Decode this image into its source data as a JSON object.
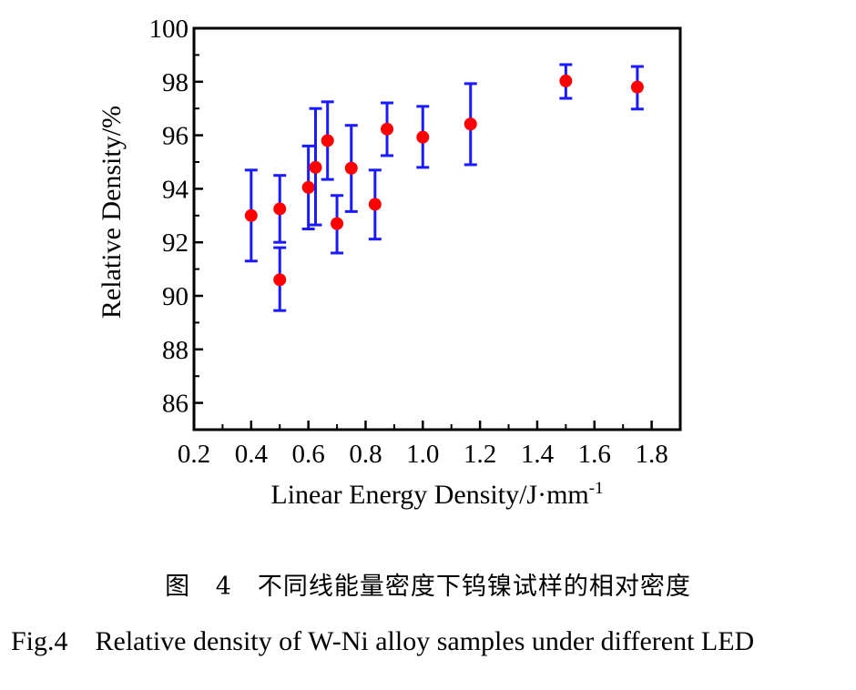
{
  "chart_data": {
    "type": "scatter",
    "title": "",
    "xlabel": "Linear Energy Density/J·mm",
    "xlabel_superscript": "-1",
    "ylabel": "Relative Density/%",
    "xlim": [
      0.2,
      1.9
    ],
    "ylim": [
      85,
      100
    ],
    "x_ticks": [
      0.2,
      0.4,
      0.6,
      0.8,
      1.0,
      1.2,
      1.4,
      1.6,
      1.8
    ],
    "x_tick_labels": [
      "0.2",
      "0.4",
      "0.6",
      "0.8",
      "1.0",
      "1.2",
      "1.4",
      "1.6",
      "1.8"
    ],
    "y_ticks": [
      86,
      88,
      90,
      92,
      94,
      96,
      98,
      100
    ],
    "y_tick_labels": [
      "86",
      "88",
      "90",
      "92",
      "94",
      "96",
      "98",
      "100"
    ],
    "grid": false,
    "legend": "none",
    "series": [
      {
        "name": "Relative density",
        "marker_color": "#ff0000",
        "errorbar_color": "#1a1aff",
        "points": [
          {
            "x": 0.4,
            "y": 93.0,
            "y_low": 91.3,
            "y_high": 94.7
          },
          {
            "x": 0.5,
            "y": 93.25,
            "y_low": 92.0,
            "y_high": 94.5
          },
          {
            "x": 0.5,
            "y": 90.6,
            "y_low": 89.45,
            "y_high": 91.8
          },
          {
            "x": 0.6,
            "y": 94.05,
            "y_low": 92.5,
            "y_high": 95.6
          },
          {
            "x": 0.625,
            "y": 94.8,
            "y_low": 92.65,
            "y_high": 97.0
          },
          {
            "x": 0.667,
            "y": 95.8,
            "y_low": 94.35,
            "y_high": 97.25
          },
          {
            "x": 0.7,
            "y": 92.7,
            "y_low": 91.6,
            "y_high": 93.75
          },
          {
            "x": 0.75,
            "y": 94.77,
            "y_low": 93.15,
            "y_high": 96.37
          },
          {
            "x": 0.833,
            "y": 93.42,
            "y_low": 92.12,
            "y_high": 94.7
          },
          {
            "x": 0.875,
            "y": 96.23,
            "y_low": 95.24,
            "y_high": 97.21
          },
          {
            "x": 1.0,
            "y": 95.93,
            "y_low": 94.8,
            "y_high": 97.08
          },
          {
            "x": 1.167,
            "y": 96.42,
            "y_low": 94.9,
            "y_high": 97.93
          },
          {
            "x": 1.5,
            "y": 98.03,
            "y_low": 97.38,
            "y_high": 98.64
          },
          {
            "x": 1.75,
            "y": 97.8,
            "y_low": 96.98,
            "y_high": 98.57
          }
        ]
      }
    ]
  },
  "captions": {
    "cn": "图 4　不同线能量密度下钨镍试样的相对密度",
    "en": "Fig.4    Relative density of W-Ni alloy samples under different LED"
  }
}
